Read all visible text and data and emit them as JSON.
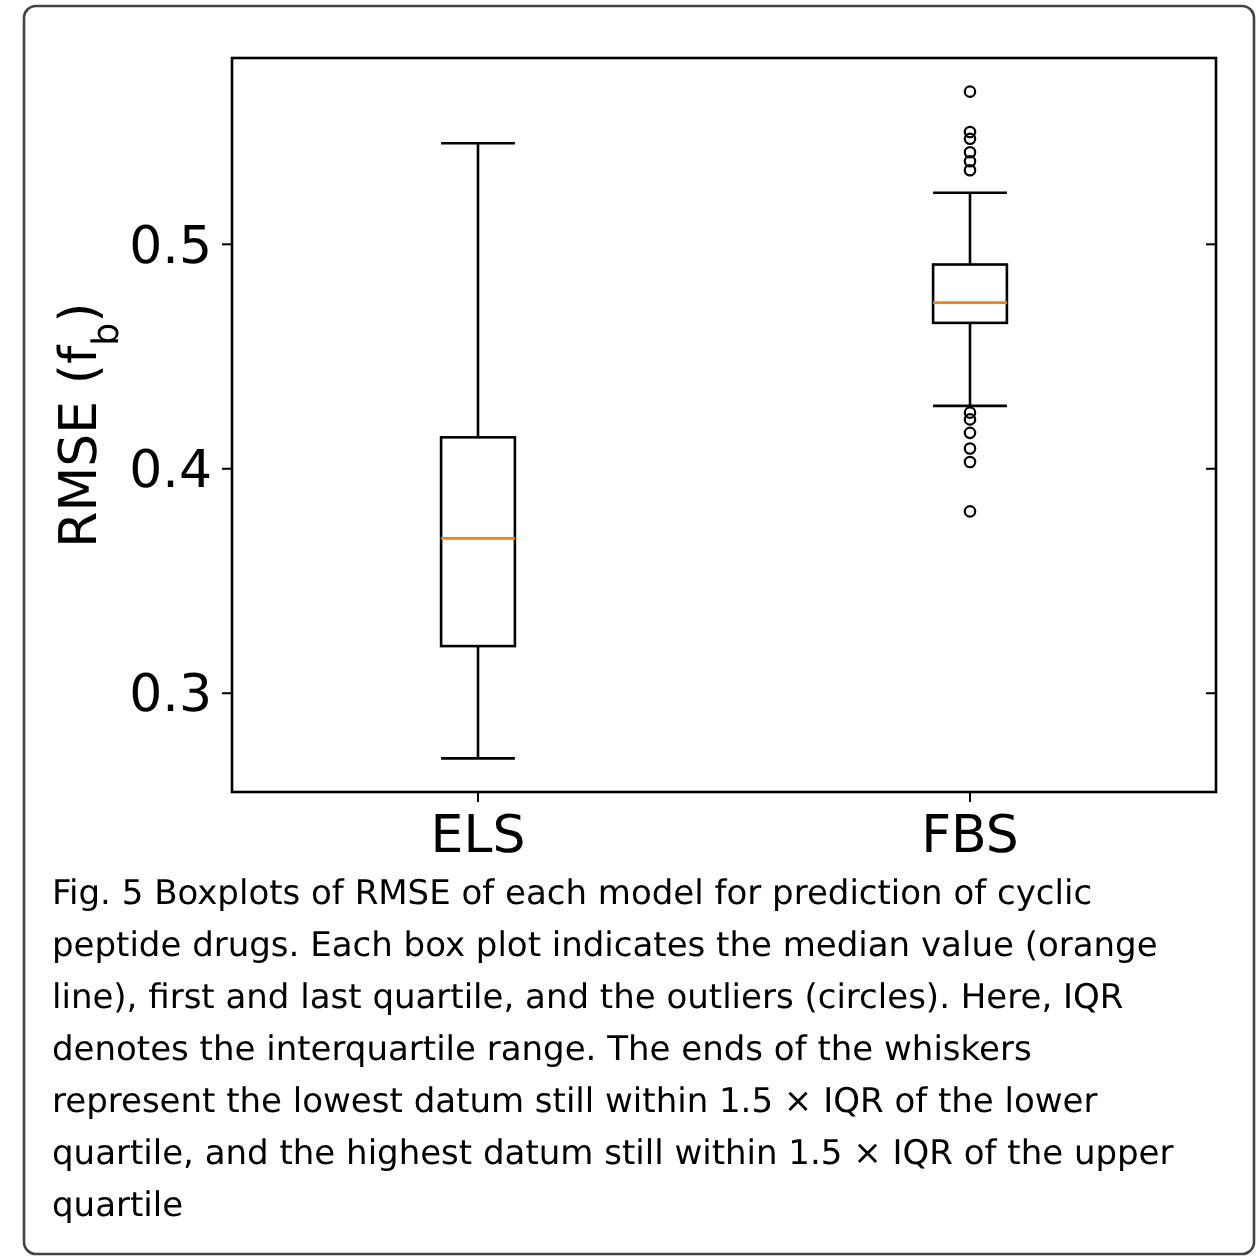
{
  "chart_data": {
    "type": "box",
    "categories": [
      "ELS",
      "FBS"
    ],
    "ylabel": "RMSE (f$_{b}$)",
    "ylim": [
      0.256,
      0.583
    ],
    "yticks": [
      0.3,
      0.4,
      0.5
    ],
    "boxes": [
      {
        "low": 0.271,
        "q1": 0.321,
        "median": 0.369,
        "q3": 0.414,
        "high": 0.545
      },
      {
        "low": 0.428,
        "q1": 0.465,
        "median": 0.474,
        "q3": 0.491,
        "high": 0.523,
        "outliers": [
          0.568,
          0.55,
          0.547,
          0.541,
          0.537,
          0.533,
          0.425,
          0.422,
          0.416,
          0.409,
          0.403,
          0.381
        ]
      }
    ],
    "grid": false,
    "annotations": [
      "Fig. 5 Boxplots of RMSE of each model for prediction of cyclic peptide drugs. Each box plot indicates the median value (orange line), first and last quartile, and the outliers (circles). Here, IQR denotes the interquartile range. The ends of the whiskers represent the lowest datum still within 1.5 × IQR of the lower quartile, and the highest datum still within 1.5 × IQR of the upper quartile"
    ]
  }
}
